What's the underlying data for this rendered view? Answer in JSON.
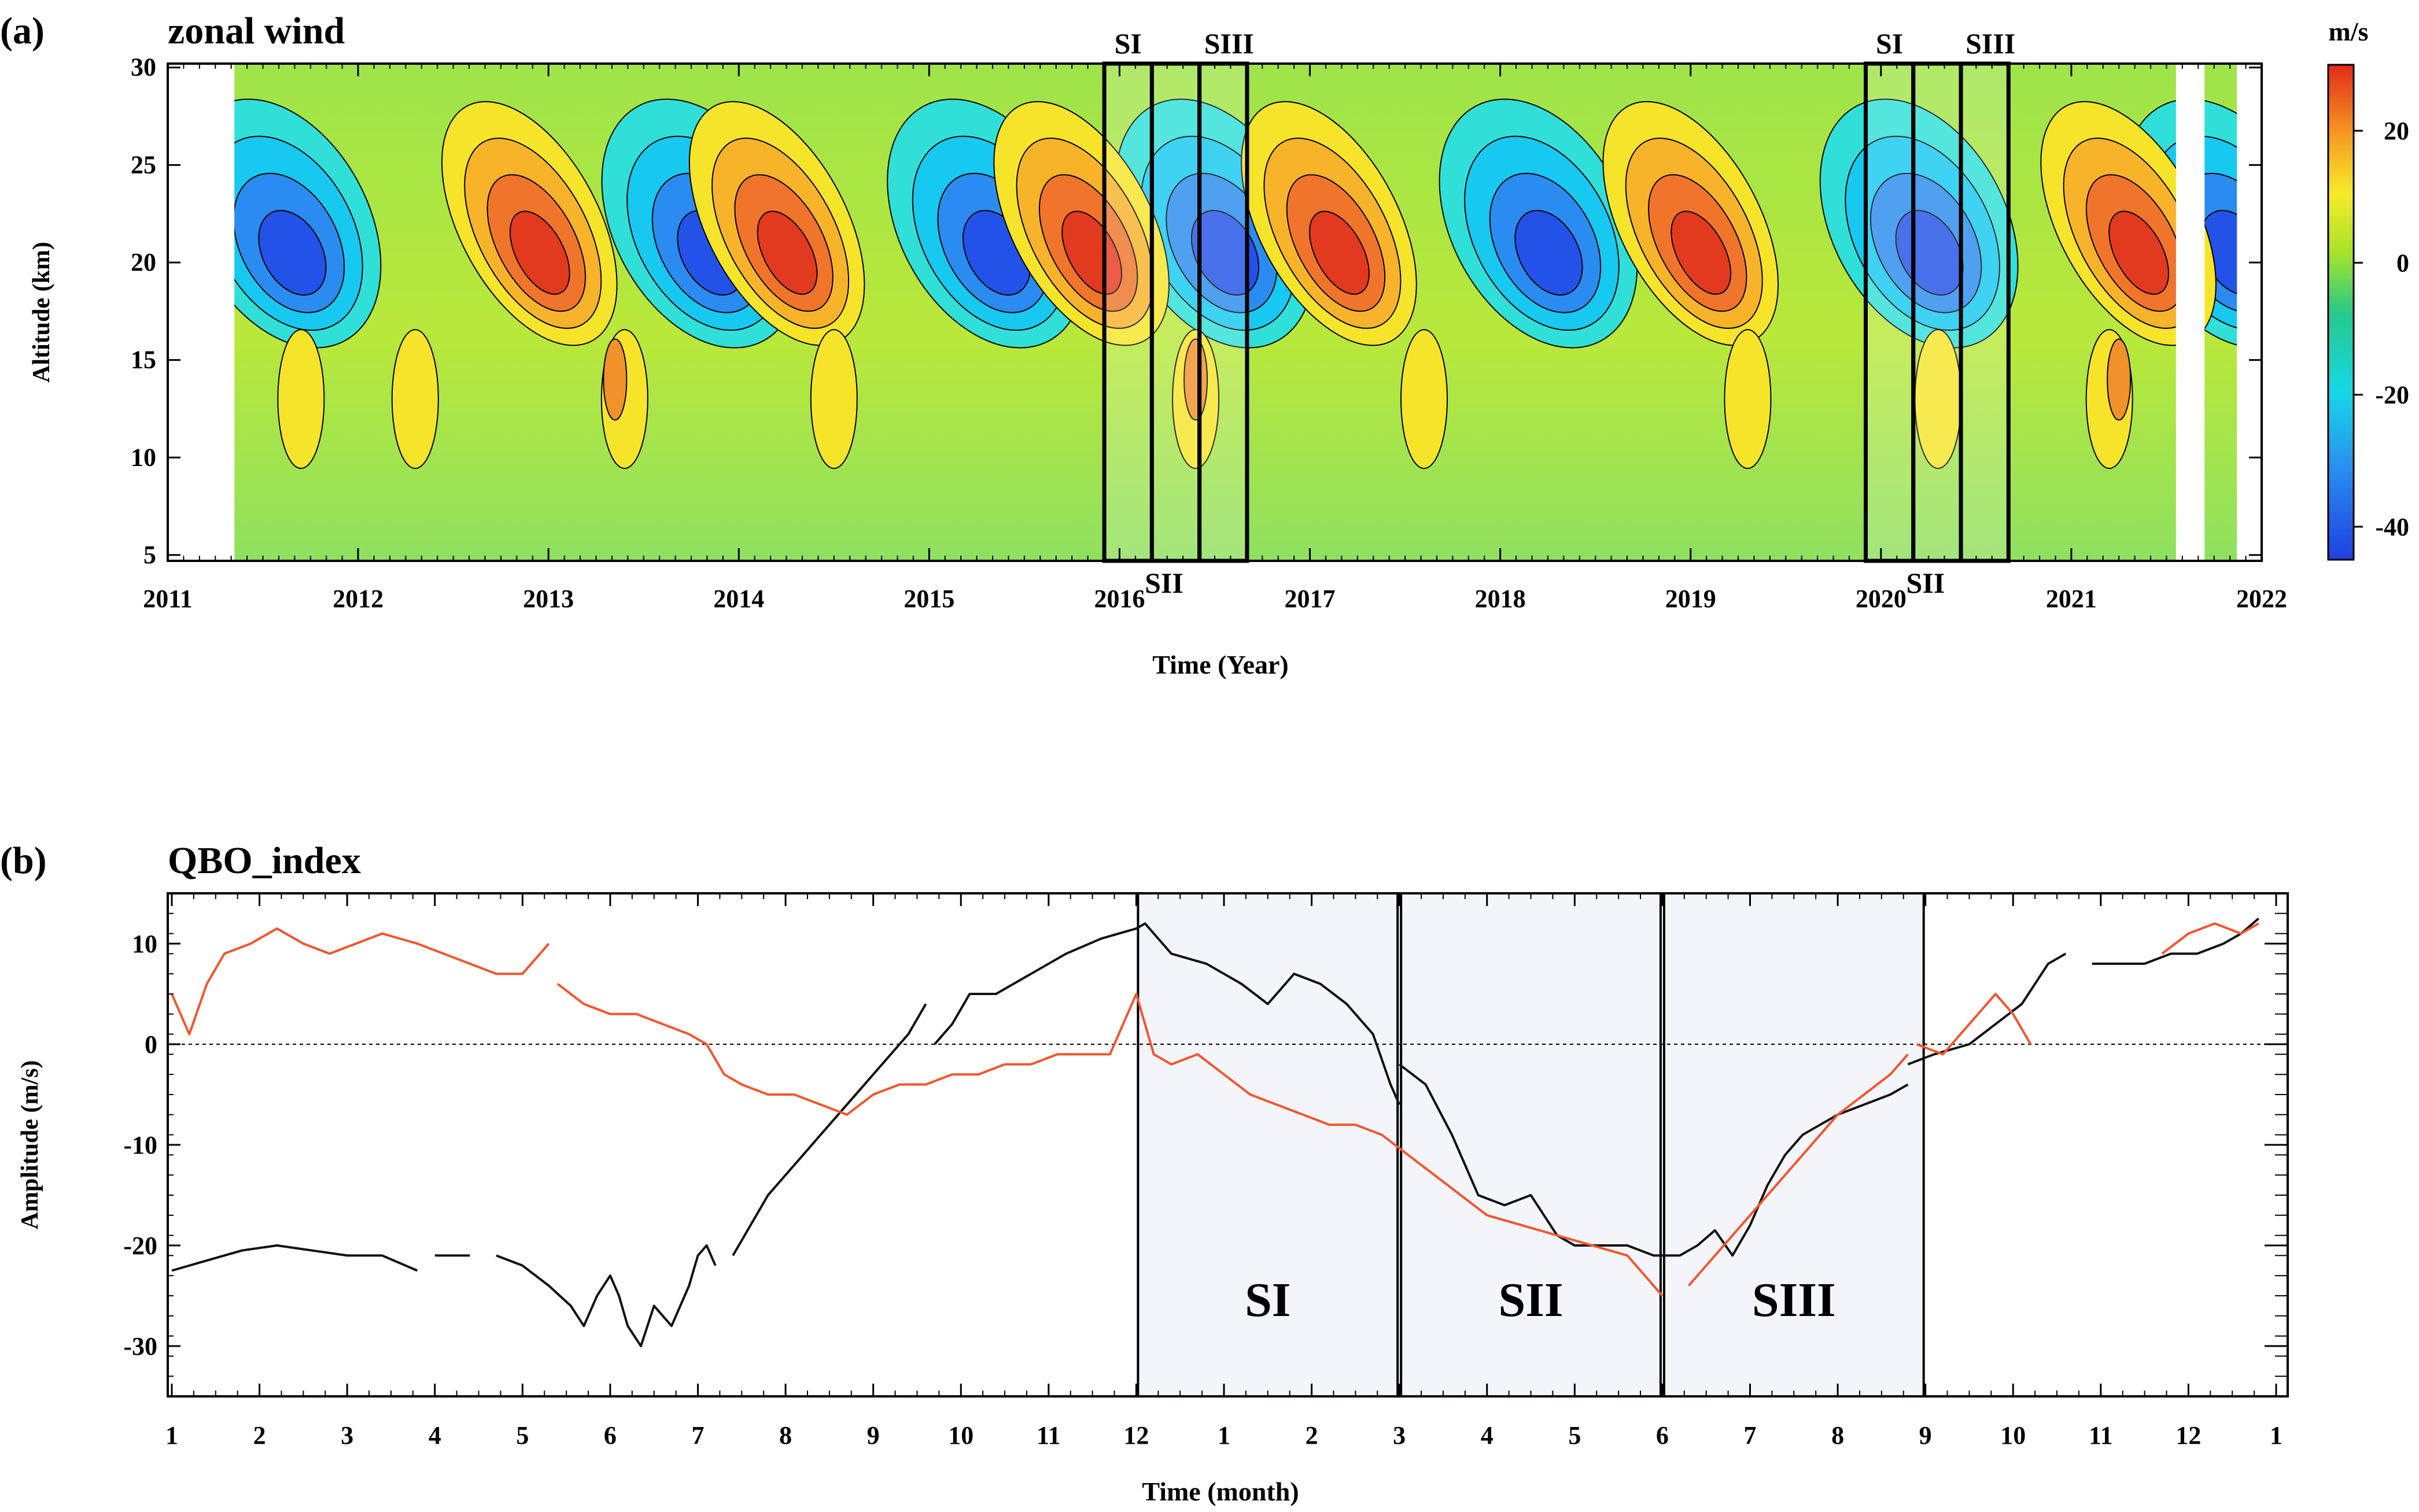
{
  "panel_a": {
    "label": "(a)",
    "title": "zonal wind",
    "ylabel": "Altitude (km)",
    "xlabel": "Time (Year)",
    "colorbar_unit": "m/s",
    "colorbar_ticks": [
      "20",
      "0",
      "-20",
      "-40"
    ],
    "box_labels_top": [
      "SI",
      "SIII",
      "SI",
      "SIII"
    ],
    "box_labels_bottom": [
      "SII",
      "SII"
    ]
  },
  "panel_b": {
    "label": "(b)",
    "title": "QBO_index",
    "ylabel": "Amplitude (m/s)",
    "xlabel": "Time (month)",
    "stage_labels": [
      "SI",
      "SII",
      "SIII"
    ]
  },
  "colors": {
    "series_black": "#111111",
    "series_orange": "#f2552c",
    "stage_fill": "#f3f5fa"
  },
  "chart_data": [
    {
      "type": "heatmap",
      "title": "zonal wind",
      "xlabel": "Time (Year)",
      "ylabel": "Altitude (km)",
      "x_ticks": [
        "2011",
        "2012",
        "2013",
        "2014",
        "2015",
        "2016",
        "2017",
        "2018",
        "2019",
        "2020",
        "2021",
        "2022"
      ],
      "y_ticks": [
        "5",
        "10",
        "15",
        "20",
        "25",
        "30"
      ],
      "xlim": [
        2011,
        2022
      ],
      "ylim": [
        4.7,
        30.2
      ],
      "colorbar": {
        "unit": "m/s",
        "range": [
          -45,
          30
        ],
        "ticks": [
          "20",
          "0",
          "-20",
          "-40"
        ]
      },
      "data_coverage": [
        [
          2011.35,
          2021.55
        ],
        [
          2021.7,
          2021.87
        ]
      ],
      "phases": {
        "westerly": [
          2012.9,
          2014.2,
          2015.8,
          2017.1,
          2019.0,
          2021.3
        ],
        "easterly": [
          2011.6,
          2013.8,
          2015.3,
          2016.5,
          2018.2,
          2020.2,
          2021.8
        ]
      },
      "boxes": [
        {
          "label": "SI",
          "x": [
            2015.92,
            2016.17
          ]
        },
        {
          "label": "SII",
          "x": [
            2016.17,
            2016.42
          ]
        },
        {
          "label": "SIII",
          "x": [
            2016.42,
            2016.67
          ]
        },
        {
          "label": "SI",
          "x": [
            2019.92,
            2020.17
          ]
        },
        {
          "label": "SII",
          "x": [
            2020.17,
            2020.42
          ]
        },
        {
          "label": "SIII",
          "x": [
            2020.42,
            2020.67
          ]
        }
      ]
    },
    {
      "type": "line",
      "title": "QBO_index",
      "xlabel": "Time (month)",
      "ylabel": "Amplitude (m/s)",
      "x_ticks": [
        "1",
        "2",
        "3",
        "4",
        "5",
        "6",
        "7",
        "8",
        "9",
        "10",
        "11",
        "12",
        "1",
        "2",
        "3",
        "4",
        "5",
        "6",
        "7",
        "8",
        "9",
        "10",
        "11",
        "12",
        "1"
      ],
      "y_ticks": [
        "10",
        "0",
        "-10",
        "-20",
        "-30"
      ],
      "xlim": [
        0,
        24
      ],
      "ylim": [
        -35,
        15
      ],
      "stages": [
        {
          "label": "SI",
          "x": [
            11,
            14
          ]
        },
        {
          "label": "SII",
          "x": [
            14,
            17
          ]
        },
        {
          "label": "SIII",
          "x": [
            17,
            20
          ]
        }
      ],
      "series": [
        {
          "name": "black",
          "color": "#111111",
          "segments": [
            [
              [
                0,
                -22.5
              ],
              [
                0.4,
                -21.5
              ],
              [
                0.8,
                -20.5
              ],
              [
                1.2,
                -20
              ],
              [
                1.6,
                -20.5
              ],
              [
                2.0,
                -21
              ],
              [
                2.4,
                -21
              ],
              [
                2.8,
                -22.5
              ]
            ],
            [
              [
                3.0,
                -21
              ],
              [
                3.4,
                -21
              ]
            ],
            [
              [
                3.7,
                -21
              ],
              [
                4.0,
                -22
              ],
              [
                4.3,
                -24
              ],
              [
                4.55,
                -26
              ],
              [
                4.7,
                -28
              ],
              [
                4.85,
                -25
              ],
              [
                5.0,
                -23
              ],
              [
                5.1,
                -25
              ],
              [
                5.2,
                -28
              ],
              [
                5.35,
                -30
              ],
              [
                5.5,
                -26
              ],
              [
                5.7,
                -28
              ],
              [
                5.9,
                -24
              ],
              [
                6.0,
                -21
              ],
              [
                6.1,
                -20
              ],
              [
                6.2,
                -22
              ]
            ],
            [
              [
                6.4,
                -21
              ],
              [
                6.6,
                -18
              ],
              [
                6.8,
                -15
              ],
              [
                7.0,
                -13
              ],
              [
                7.2,
                -11
              ],
              [
                7.4,
                -9
              ],
              [
                7.6,
                -7
              ],
              [
                7.8,
                -5
              ],
              [
                8.0,
                -3
              ],
              [
                8.2,
                -1
              ],
              [
                8.4,
                1
              ],
              [
                8.6,
                4
              ]
            ],
            [
              [
                8.7,
                0
              ],
              [
                8.9,
                2
              ],
              [
                9.1,
                5
              ],
              [
                9.4,
                5
              ],
              [
                9.8,
                7
              ],
              [
                10.2,
                9
              ],
              [
                10.6,
                10.5
              ],
              [
                11.0,
                11.5
              ],
              [
                11.1,
                12
              ],
              [
                11.4,
                9
              ],
              [
                11.8,
                8
              ],
              [
                12.2,
                6
              ],
              [
                12.5,
                4
              ],
              [
                12.8,
                7
              ],
              [
                13.1,
                6
              ],
              [
                13.4,
                4
              ],
              [
                13.7,
                1
              ],
              [
                13.9,
                -4
              ],
              [
                14.0,
                -6
              ]
            ],
            [
              [
                14.0,
                -2
              ],
              [
                14.3,
                -4
              ],
              [
                14.6,
                -9
              ],
              [
                14.9,
                -15
              ],
              [
                15.2,
                -16
              ],
              [
                15.5,
                -15
              ],
              [
                15.8,
                -19
              ],
              [
                16.0,
                -20
              ],
              [
                16.3,
                -20
              ],
              [
                16.6,
                -20
              ],
              [
                16.9,
                -21
              ],
              [
                17.2,
                -21
              ],
              [
                17.4,
                -20
              ],
              [
                17.6,
                -18.5
              ],
              [
                17.8,
                -21
              ],
              [
                18.0,
                -18
              ],
              [
                18.2,
                -14
              ],
              [
                18.4,
                -11
              ],
              [
                18.6,
                -9
              ],
              [
                18.8,
                -8
              ],
              [
                19.0,
                -7
              ],
              [
                19.3,
                -6
              ],
              [
                19.6,
                -5
              ],
              [
                19.8,
                -4
              ]
            ],
            [
              [
                19.8,
                -2
              ],
              [
                20.1,
                -1
              ],
              [
                20.5,
                0
              ],
              [
                20.8,
                2
              ],
              [
                21.1,
                4
              ],
              [
                21.4,
                8
              ],
              [
                21.6,
                9
              ]
            ],
            [
              [
                21.9,
                8
              ],
              [
                22.2,
                8
              ],
              [
                22.5,
                8
              ],
              [
                22.8,
                9
              ],
              [
                23.1,
                9
              ],
              [
                23.4,
                10
              ],
              [
                23.6,
                11
              ],
              [
                23.8,
                12.5
              ]
            ]
          ]
        },
        {
          "name": "orange",
          "color": "#f2552c",
          "segments": [
            [
              [
                0,
                5
              ],
              [
                0.2,
                1
              ],
              [
                0.4,
                6
              ],
              [
                0.6,
                9
              ],
              [
                0.9,
                10
              ],
              [
                1.2,
                11.5
              ],
              [
                1.5,
                10
              ],
              [
                1.8,
                9
              ],
              [
                2.1,
                10
              ],
              [
                2.4,
                11
              ],
              [
                2.8,
                10
              ],
              [
                3.1,
                9
              ],
              [
                3.4,
                8
              ],
              [
                3.7,
                7
              ],
              [
                4.0,
                7
              ],
              [
                4.3,
                10
              ]
            ],
            [
              [
                4.4,
                6
              ],
              [
                4.7,
                4
              ],
              [
                5.0,
                3
              ],
              [
                5.3,
                3
              ],
              [
                5.6,
                2
              ],
              [
                5.9,
                1
              ],
              [
                6.1,
                0
              ],
              [
                6.3,
                -3
              ],
              [
                6.5,
                -4
              ],
              [
                6.8,
                -5
              ],
              [
                7.1,
                -5
              ],
              [
                7.4,
                -6
              ],
              [
                7.7,
                -7
              ],
              [
                8.0,
                -5
              ],
              [
                8.3,
                -4
              ],
              [
                8.6,
                -4
              ],
              [
                8.9,
                -3
              ],
              [
                9.2,
                -3
              ],
              [
                9.5,
                -2
              ],
              [
                9.8,
                -2
              ],
              [
                10.1,
                -1
              ],
              [
                10.4,
                -1
              ],
              [
                10.7,
                -1
              ],
              [
                11.0,
                5
              ],
              [
                11.2,
                -1
              ],
              [
                11.4,
                -2
              ],
              [
                11.7,
                -1
              ],
              [
                12.0,
                -3
              ],
              [
                12.3,
                -5
              ],
              [
                12.6,
                -6
              ],
              [
                12.9,
                -7
              ],
              [
                13.2,
                -8
              ],
              [
                13.5,
                -8
              ],
              [
                13.8,
                -9
              ],
              [
                14.1,
                -11
              ],
              [
                14.4,
                -13
              ],
              [
                14.7,
                -15
              ],
              [
                15.0,
                -17
              ],
              [
                15.4,
                -18
              ],
              [
                15.8,
                -19
              ],
              [
                16.2,
                -20
              ],
              [
                16.6,
                -21
              ],
              [
                16.9,
                -24
              ],
              [
                17.0,
                -25
              ]
            ],
            [
              [
                17.3,
                -24
              ],
              [
                17.6,
                -21
              ],
              [
                18.0,
                -17
              ],
              [
                18.4,
                -13
              ],
              [
                18.7,
                -10
              ],
              [
                19.0,
                -7
              ],
              [
                19.3,
                -5
              ],
              [
                19.6,
                -3
              ],
              [
                19.8,
                -1
              ]
            ],
            [
              [
                19.9,
                0
              ],
              [
                20.2,
                -1
              ],
              [
                20.5,
                2
              ],
              [
                20.8,
                5
              ],
              [
                21.0,
                3
              ],
              [
                21.2,
                0
              ]
            ],
            [
              [
                22.7,
                9
              ],
              [
                23.0,
                11
              ],
              [
                23.3,
                12
              ],
              [
                23.6,
                11
              ],
              [
                23.8,
                12
              ]
            ]
          ]
        }
      ]
    }
  ]
}
